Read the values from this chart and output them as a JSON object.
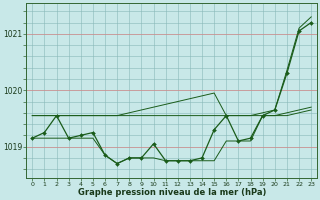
{
  "hours": [
    0,
    1,
    2,
    3,
    4,
    5,
    6,
    7,
    8,
    9,
    10,
    11,
    12,
    13,
    14,
    15,
    16,
    17,
    18,
    19,
    20,
    21,
    22,
    23
  ],
  "pressure_main": [
    1019.15,
    1019.25,
    1019.55,
    1019.15,
    1019.2,
    1019.25,
    1018.85,
    1018.7,
    1018.8,
    1018.8,
    1019.05,
    1018.75,
    1018.75,
    1018.75,
    1018.8,
    1019.3,
    1019.55,
    1019.1,
    1019.15,
    1019.55,
    1019.65,
    1020.3,
    1021.05,
    1021.2
  ],
  "pressure_upper": [
    1019.55,
    1019.55,
    1019.55,
    1019.55,
    1019.55,
    1019.55,
    1019.55,
    1019.55,
    1019.6,
    1019.65,
    1019.7,
    1019.75,
    1019.8,
    1019.85,
    1019.9,
    1019.95,
    1019.55,
    1019.55,
    1019.55,
    1019.6,
    1019.65,
    1020.35,
    1021.1,
    1021.3
  ],
  "pressure_lower": [
    1019.15,
    1019.15,
    1019.15,
    1019.15,
    1019.15,
    1019.15,
    1018.85,
    1018.7,
    1018.8,
    1018.8,
    1018.8,
    1018.75,
    1018.75,
    1018.75,
    1018.75,
    1018.75,
    1019.1,
    1019.1,
    1019.1,
    1019.55,
    1019.55,
    1019.55,
    1019.6,
    1019.65
  ],
  "pressure_flat": [
    1019.55,
    1019.55,
    1019.55,
    1019.55,
    1019.55,
    1019.55,
    1019.55,
    1019.55,
    1019.55,
    1019.55,
    1019.55,
    1019.55,
    1019.55,
    1019.55,
    1019.55,
    1019.55,
    1019.55,
    1019.55,
    1019.55,
    1019.55,
    1019.55,
    1019.6,
    1019.65,
    1019.7
  ],
  "ylim_min": 1018.45,
  "ylim_max": 1021.55,
  "ytick_positions": [
    1019.0,
    1020.0,
    1021.0
  ],
  "ytick_labels": [
    "1019",
    "1020",
    "1021"
  ],
  "bg_color": "#c8e8e8",
  "line_color": "#1a5c1a",
  "grid_h_major_color": "#c08888",
  "grid_h_minor_color": "#88b8b8",
  "grid_v_color": "#88b8b8",
  "xlabel": "Graphe pression niveau de la mer (hPa)"
}
